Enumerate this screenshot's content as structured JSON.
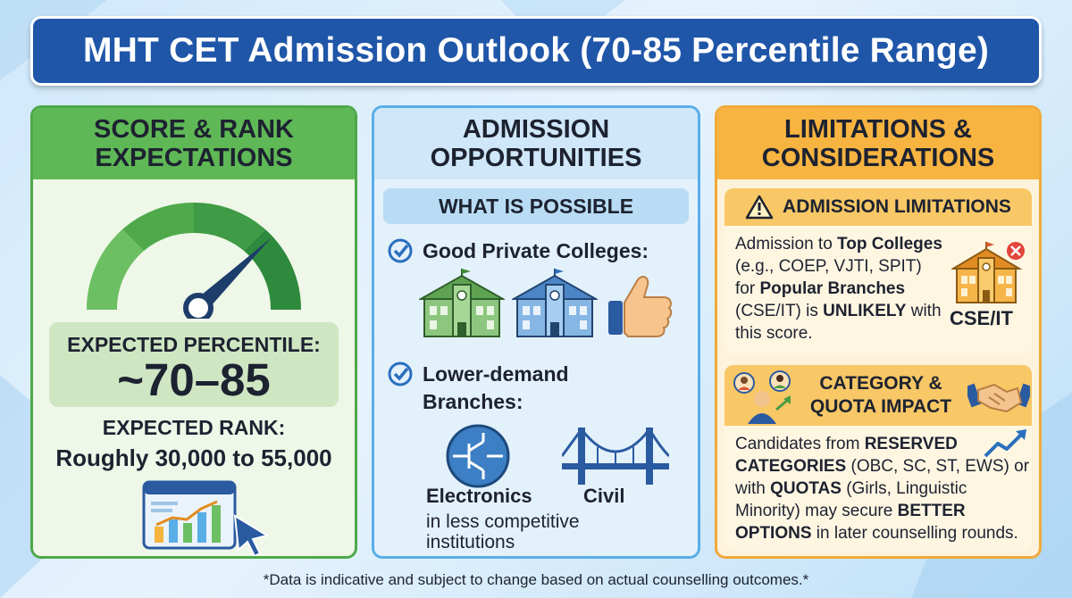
{
  "title": "MHT CET Admission Outlook (70-85 Percentile Range)",
  "score_panel": {
    "heading_line1": "SCORE & RANK",
    "heading_line2": "EXPECTATIONS",
    "percentile_label": "EXPECTED PERCENTILE:",
    "percentile_value": "~70–85",
    "rank_label": "EXPECTED RANK:",
    "rank_value": "Roughly 30,000 to 55,000",
    "icons": [
      "gauge-icon",
      "bar-chart-icon",
      "cursor-icon"
    ]
  },
  "opportunities_panel": {
    "heading_line1": "ADMISSION",
    "heading_line2": "OPPORTUNITIES",
    "subheading": "WHAT IS POSSIBLE",
    "item1": "Good Private Colleges:",
    "item2_line1": "Lower-demand",
    "item2_line2": "Branches:",
    "branch1": "Electronics",
    "branch2": "Civil",
    "note_line1": "in less competitive",
    "note_line2": "institutions",
    "icons": [
      "check-icon",
      "college-building-icon",
      "thumbs-up-icon",
      "circuit-icon",
      "bridge-icon"
    ]
  },
  "limitations_panel": {
    "heading_line1": "LIMITATIONS &",
    "heading_line2": "CONSIDERATIONS",
    "limits_heading": "ADMISSION LIMITATIONS",
    "limits_text": {
      "t1": "Admission to ",
      "b1": "Top Colleges",
      "t2": " (e.g., COEP, VJTI, SPIT) for ",
      "b2": "Popular Branches",
      "t3": " (CSE/IT) is ",
      "b3": "UNLIKELY",
      "t4": " with this score."
    },
    "cse_label": "CSE/IT",
    "category_heading_line1": "CATEGORY &",
    "category_heading_line2": "QUOTA IMPACT",
    "category_text": {
      "t1": "Candidates from ",
      "b1": "RESERVED CATEGORIES",
      "t2": " (OBC, SC, ST, EWS) or with ",
      "b2": "QUOTAS",
      "t3": " (Girls, Linguistic Minority) may secure ",
      "b3": "BETTER OPTIONS",
      "t4": " in later counselling rounds."
    },
    "icons": [
      "warning-icon",
      "college-cross-icon",
      "people-icon",
      "handshake-icon",
      "trend-arrow-icon"
    ]
  },
  "footer": "*Data is indicative and subject to change based on actual counselling outcomes.*",
  "colors": {
    "title_bg": "#1f56a8",
    "green": "#5fb856",
    "blue": "#5aaee6",
    "orange": "#f7b441",
    "check": "#2a6fbd"
  }
}
